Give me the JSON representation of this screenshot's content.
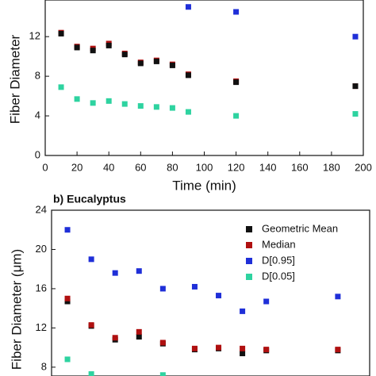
{
  "chart_data": [
    {
      "type": "scatter",
      "y_label": "Fiber Diameter",
      "x_label": "Time (min)",
      "x": [
        10,
        20,
        30,
        40,
        50,
        60,
        70,
        80,
        90,
        120,
        195
      ],
      "xlim": [
        0,
        200
      ],
      "xticks": [
        0,
        20,
        40,
        60,
        80,
        100,
        120,
        140,
        160,
        180,
        200
      ],
      "ylim": [
        0,
        15.7
      ],
      "yticks": [
        0,
        4,
        8,
        12
      ],
      "series": [
        {
          "color": "#1f2fd8",
          "values": [
            null,
            null,
            null,
            null,
            null,
            null,
            null,
            null,
            15.0,
            14.5,
            12.0
          ]
        },
        {
          "color": "#2ed3a0",
          "values": [
            6.9,
            5.7,
            5.3,
            5.5,
            5.2,
            5.0,
            4.9,
            4.8,
            4.4,
            4.0,
            4.2
          ]
        },
        {
          "color": "#b01010",
          "values": [
            12.4,
            11.0,
            10.8,
            11.3,
            10.3,
            9.4,
            9.6,
            9.2,
            8.2,
            7.5,
            7.0
          ]
        },
        {
          "color": "#111111",
          "values": [
            12.3,
            10.9,
            10.6,
            11.1,
            10.2,
            9.3,
            9.5,
            9.1,
            8.1,
            7.4,
            7.0
          ]
        }
      ]
    },
    {
      "type": "scatter",
      "title": "b) Eucalyptus",
      "y_label": "Fiber Diameter (μm)",
      "x": [
        10,
        25,
        40,
        55,
        70,
        90,
        105,
        120,
        135,
        150,
        180
      ],
      "xlim": [
        0,
        200
      ],
      "ylim": [
        7.1,
        24
      ],
      "yticks": [
        8,
        12,
        16,
        20,
        24
      ],
      "series": [
        {
          "name": "Geometric Mean",
          "color": "#111111",
          "values": [
            14.7,
            12.2,
            10.8,
            11.1,
            10.4,
            9.8,
            9.9,
            9.4,
            9.7,
            null,
            9.7
          ]
        },
        {
          "name": "Median",
          "color": "#b01010",
          "values": [
            15.0,
            12.3,
            11.0,
            11.6,
            10.5,
            9.9,
            10.0,
            9.9,
            9.8,
            null,
            9.8
          ]
        },
        {
          "name": "D[0.95]",
          "color": "#1f2fd8",
          "values": [
            22.0,
            19.0,
            17.6,
            17.8,
            16.0,
            16.2,
            15.3,
            13.7,
            14.7,
            null,
            15.2
          ]
        },
        {
          "name": "D[0.05]",
          "color": "#2ed3a0",
          "values": [
            8.8,
            7.3,
            null,
            null,
            7.2,
            null,
            null,
            null,
            null,
            null,
            null
          ]
        }
      ]
    }
  ]
}
